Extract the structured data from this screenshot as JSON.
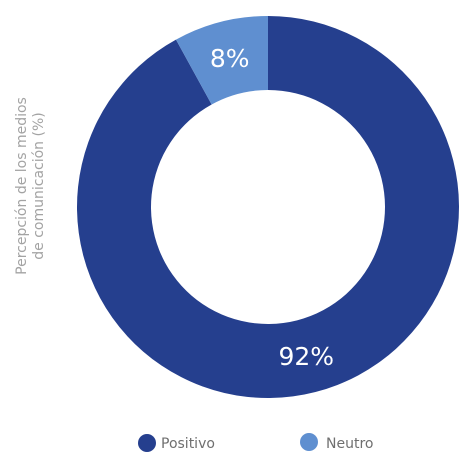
{
  "chart_data": {
    "type": "pie",
    "donut": true,
    "title": "",
    "ylabel_lines": [
      "Percepción de los medios",
      "de comunicación (%)"
    ],
    "slices": [
      {
        "name": "Positivo",
        "value": 92,
        "label": "92%",
        "color": "#253f8e"
      },
      {
        "name": "Neutro",
        "value": 8,
        "label": "8%",
        "color": "#5f8fd0"
      }
    ],
    "legend_position": "bottom",
    "grid": false
  }
}
